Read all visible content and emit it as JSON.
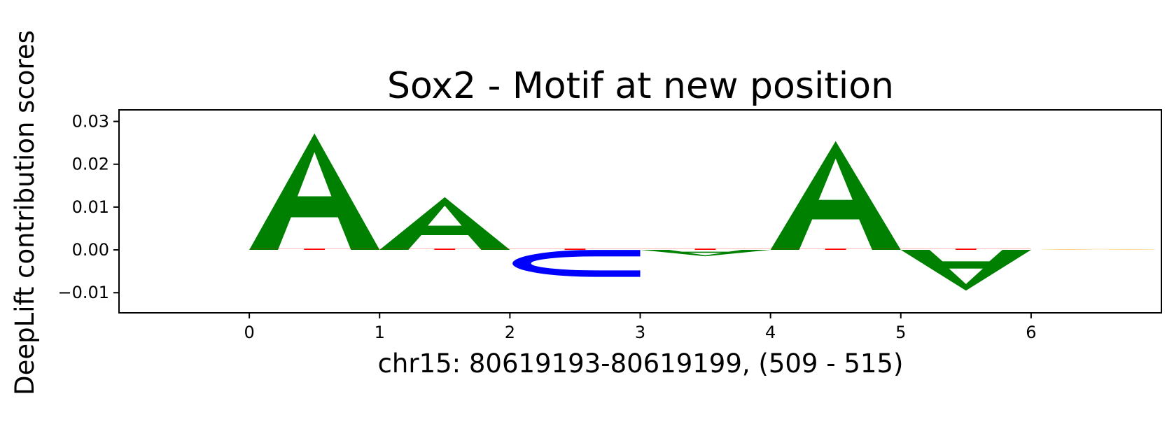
{
  "chart_data": {
    "type": "sequence-logo",
    "title": "Sox2 - Motif at new position",
    "xlabel": "chr15: 80619193-80619199, (509 - 515)",
    "ylabel": "DeepLift contribution scores",
    "xlim": [
      -1,
      7
    ],
    "ylim": [
      -0.0147,
      0.0327
    ],
    "x_ticks": [
      "0",
      "1",
      "2",
      "3",
      "4",
      "5",
      "6"
    ],
    "y_ticks": [
      "−0.01",
      "0.00",
      "0.01",
      "0.02",
      "0.03"
    ],
    "y_tick_values": [
      -0.01,
      0.0,
      0.01,
      0.02,
      0.03
    ],
    "grid": false,
    "legend": "none",
    "positions": [
      0,
      1,
      2,
      3,
      4,
      5,
      6
    ],
    "series": [
      {
        "name": "A",
        "color": "#008000",
        "values": [
          0.0272,
          0.0123,
          0.0,
          -0.0015,
          0.0254,
          -0.0095,
          0.0
        ]
      },
      {
        "name": "C",
        "color": "#0000ff",
        "values": [
          0.0,
          0.0,
          -0.0063,
          0.0,
          0.0,
          0.0,
          0.0
        ]
      },
      {
        "name": "G",
        "color": "#ffa500",
        "values": [
          0.0,
          0.0,
          0.0,
          0.0,
          0.0,
          0.0,
          0.0002
        ]
      },
      {
        "name": "T",
        "color": "#ff0000",
        "values": [
          0.0003,
          0.0003,
          0.0003,
          0.0003,
          0.0003,
          0.0003,
          0.0
        ]
      }
    ]
  }
}
